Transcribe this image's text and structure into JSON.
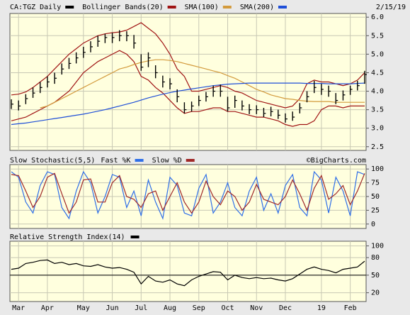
{
  "chart_data": [
    {
      "type": "ohlc",
      "title": "CA:TGZ Daily",
      "color": "#000000",
      "date_label": "2/15/19",
      "high": [
        3.78,
        3.75,
        3.92,
        4.1,
        4.25,
        4.4,
        4.5,
        4.75,
        4.9,
        5.05,
        5.2,
        5.35,
        5.5,
        5.55,
        5.58,
        5.65,
        5.62,
        5.52,
        5.0,
        5.05,
        4.7,
        4.42,
        4.35,
        4.05,
        3.7,
        3.72,
        3.88,
        3.98,
        4.15,
        4.18,
        3.85,
        3.88,
        3.75,
        3.65,
        3.62,
        3.55,
        3.58,
        3.5,
        3.4,
        3.45,
        3.68,
        4.0,
        4.28,
        4.2,
        4.15,
        3.95,
        4.02,
        4.15,
        4.28,
        4.55
      ],
      "low": [
        3.52,
        3.48,
        3.65,
        3.82,
        3.95,
        4.1,
        4.2,
        4.45,
        4.6,
        4.75,
        4.9,
        5.05,
        5.2,
        5.3,
        5.3,
        5.35,
        5.35,
        5.15,
        4.55,
        4.65,
        4.35,
        4.1,
        4.05,
        3.7,
        3.4,
        3.45,
        3.6,
        3.72,
        3.85,
        3.85,
        3.45,
        3.55,
        3.48,
        3.38,
        3.38,
        3.3,
        3.32,
        3.25,
        3.15,
        3.2,
        3.4,
        3.7,
        3.95,
        3.9,
        3.85,
        3.65,
        3.75,
        3.9,
        4.02,
        4.2
      ],
      "close": [
        3.65,
        3.6,
        3.8,
        3.95,
        4.1,
        4.25,
        4.35,
        4.6,
        4.75,
        4.9,
        5.05,
        5.2,
        5.35,
        5.45,
        5.45,
        5.5,
        5.5,
        5.3,
        4.65,
        4.9,
        4.5,
        4.25,
        4.2,
        3.85,
        3.5,
        3.6,
        3.75,
        3.85,
        4.0,
        4.0,
        3.55,
        3.75,
        3.6,
        3.5,
        3.5,
        3.4,
        3.45,
        3.35,
        3.25,
        3.3,
        3.55,
        3.85,
        4.1,
        4.05,
        4.0,
        3.75,
        3.9,
        4.05,
        4.15,
        4.45
      ],
      "bands": {
        "name": "Bollinger Bands(20)",
        "color": "#a01414",
        "upper": [
          3.9,
          3.92,
          3.98,
          4.1,
          4.25,
          4.4,
          4.6,
          4.8,
          5.0,
          5.15,
          5.3,
          5.4,
          5.5,
          5.55,
          5.58,
          5.6,
          5.65,
          5.75,
          5.85,
          5.7,
          5.55,
          5.3,
          5.0,
          4.6,
          4.4,
          4.0,
          4.0,
          4.05,
          4.1,
          4.15,
          4.1,
          4.0,
          3.95,
          3.85,
          3.75,
          3.7,
          3.65,
          3.6,
          3.55,
          3.6,
          3.8,
          4.2,
          4.3,
          4.25,
          4.25,
          4.2,
          4.15,
          4.2,
          4.3,
          4.5
        ],
        "lower": [
          3.2,
          3.25,
          3.3,
          3.4,
          3.5,
          3.6,
          3.7,
          3.85,
          4.0,
          4.25,
          4.5,
          4.65,
          4.8,
          4.9,
          5.0,
          5.1,
          5.0,
          4.8,
          4.4,
          4.3,
          4.1,
          3.95,
          3.75,
          3.55,
          3.4,
          3.45,
          3.45,
          3.5,
          3.55,
          3.55,
          3.45,
          3.45,
          3.4,
          3.35,
          3.3,
          3.3,
          3.25,
          3.2,
          3.1,
          3.05,
          3.1,
          3.1,
          3.2,
          3.5,
          3.6,
          3.6,
          3.55,
          3.6,
          3.6,
          3.6
        ]
      },
      "series": [
        {
          "name": "SMA(100)",
          "color": "#d39a3c",
          "values": [
            null,
            null,
            null,
            null,
            3.55,
            3.6,
            3.7,
            3.8,
            3.9,
            4.0,
            4.1,
            4.2,
            4.3,
            4.4,
            4.5,
            4.6,
            4.65,
            4.72,
            4.78,
            4.82,
            4.85,
            4.85,
            4.83,
            4.8,
            4.75,
            4.7,
            4.65,
            4.6,
            4.55,
            4.5,
            4.42,
            4.35,
            4.25,
            4.15,
            4.05,
            3.98,
            3.9,
            3.85,
            3.8,
            3.78,
            3.75,
            3.73,
            3.72,
            3.72,
            3.72,
            3.7,
            3.7,
            3.7,
            3.7,
            3.7
          ]
        },
        {
          "name": "SMA(200)",
          "color": "#1f4fd8",
          "values": [
            3.1,
            3.12,
            3.14,
            3.17,
            3.2,
            3.23,
            3.26,
            3.29,
            3.32,
            3.35,
            3.38,
            3.42,
            3.46,
            3.5,
            3.55,
            3.6,
            3.65,
            3.7,
            3.76,
            3.82,
            3.87,
            3.92,
            3.96,
            4.0,
            4.03,
            4.06,
            4.09,
            4.12,
            4.15,
            4.17,
            4.19,
            4.2,
            4.21,
            4.22,
            4.22,
            4.22,
            4.22,
            4.22,
            4.22,
            4.22,
            4.22,
            4.21,
            4.21,
            4.21,
            4.2,
            4.2,
            4.2,
            4.2,
            4.21,
            4.22
          ]
        }
      ],
      "ylim": [
        2.4,
        6.1
      ],
      "yticks": [
        {
          "value": 6,
          "label": "6.0"
        },
        5.5,
        {
          "value": 5,
          "label": "5.0"
        },
        4.5,
        {
          "value": 4,
          "label": "4.0"
        },
        3.5,
        {
          "value": 3,
          "label": "3.0"
        },
        2.5
      ],
      "grid": true
    },
    {
      "type": "line",
      "title": "Slow Stochastic(5,5)",
      "annotation": "©BigCharts.com",
      "series": [
        {
          "name": "Fast %K",
          "color": "#2f6fe8",
          "values": [
            95,
            85,
            40,
            20,
            70,
            95,
            90,
            30,
            10,
            60,
            95,
            75,
            20,
            50,
            90,
            85,
            30,
            60,
            15,
            80,
            40,
            10,
            85,
            70,
            20,
            15,
            65,
            90,
            20,
            40,
            75,
            30,
            15,
            60,
            85,
            25,
            55,
            20,
            70,
            90,
            30,
            15,
            95,
            80,
            20,
            85,
            60,
            15,
            95,
            90
          ]
        },
        {
          "name": "Slow %D",
          "color": "#a02828",
          "values": [
            90,
            88,
            60,
            30,
            50,
            85,
            92,
            55,
            20,
            40,
            80,
            82,
            40,
            40,
            75,
            88,
            50,
            45,
            30,
            55,
            60,
            25,
            50,
            75,
            40,
            20,
            40,
            78,
            50,
            35,
            60,
            50,
            25,
            40,
            72,
            45,
            40,
            35,
            50,
            80,
            55,
            25,
            65,
            88,
            45,
            55,
            70,
            35,
            60,
            92
          ]
        }
      ],
      "ylim": [
        -8,
        108
      ],
      "yticks": [
        0,
        25,
        50,
        75,
        100
      ],
      "grid": true
    },
    {
      "type": "line",
      "title": "Relative Strength Index(14)",
      "categories": [
        null,
        "Mar",
        null,
        null,
        null,
        "Apr",
        null,
        null,
        null,
        null,
        "May",
        null,
        null,
        null,
        "Jun",
        null,
        null,
        null,
        "Jul",
        null,
        null,
        null,
        "Aug",
        null,
        null,
        null,
        "Sep",
        null,
        null,
        null,
        "Oct",
        null,
        null,
        null,
        "Nov",
        null,
        null,
        null,
        "Dec",
        null,
        null,
        null,
        null,
        "19",
        null,
        null,
        null,
        "Feb",
        null,
        null
      ],
      "series": [
        {
          "color": "#000000",
          "values": [
            60,
            62,
            70,
            72,
            75,
            76,
            70,
            72,
            68,
            70,
            66,
            65,
            68,
            64,
            62,
            63,
            60,
            55,
            35,
            48,
            40,
            38,
            42,
            35,
            32,
            42,
            48,
            52,
            56,
            55,
            42,
            50,
            46,
            44,
            46,
            44,
            45,
            42,
            40,
            44,
            52,
            60,
            64,
            60,
            58,
            54,
            60,
            62,
            64,
            74
          ]
        }
      ],
      "ylim": [
        5,
        108
      ],
      "yticks": [
        20,
        50,
        80,
        100
      ],
      "reference_line": 50,
      "grid": true
    }
  ]
}
